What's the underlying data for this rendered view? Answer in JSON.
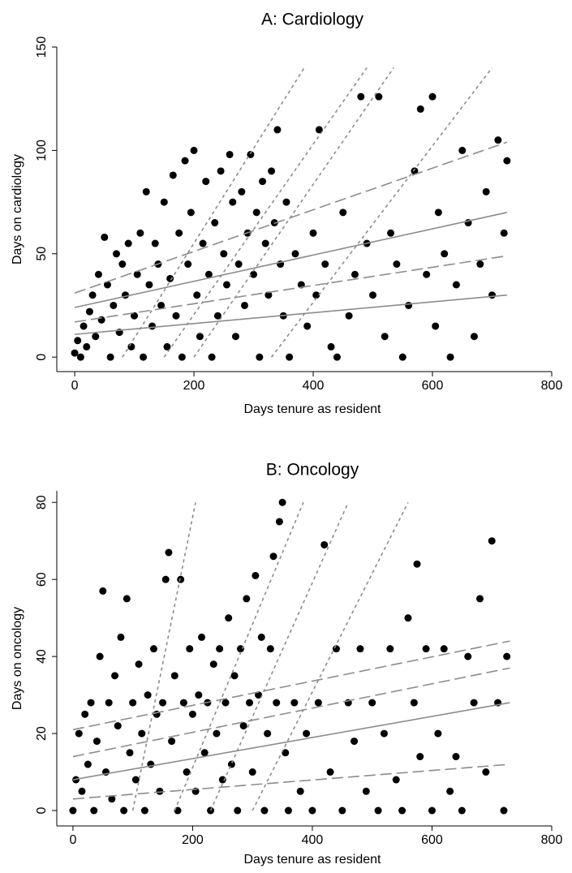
{
  "chart_data": [
    {
      "type": "scatter",
      "title": "A: Cardiology",
      "x_label": "Days tenure as resident",
      "y_label": "Days on cardiology",
      "xlim": [
        -30,
        800
      ],
      "ylim": [
        -7,
        150
      ],
      "xticks": [
        0,
        200,
        400,
        600,
        800
      ],
      "yticks": [
        0,
        50,
        100,
        150
      ],
      "color": "#000000",
      "x": [
        0,
        5,
        10,
        15,
        20,
        25,
        30,
        35,
        40,
        45,
        50,
        55,
        60,
        65,
        70,
        75,
        80,
        85,
        90,
        95,
        100,
        105,
        110,
        115,
        120,
        125,
        130,
        135,
        140,
        145,
        150,
        155,
        160,
        165,
        170,
        175,
        180,
        185,
        190,
        195,
        200,
        205,
        210,
        215,
        220,
        225,
        230,
        235,
        240,
        245,
        250,
        255,
        260,
        265,
        270,
        275,
        280,
        285,
        290,
        295,
        300,
        305,
        310,
        315,
        320,
        325,
        330,
        335,
        340,
        345,
        350,
        355,
        360,
        370,
        380,
        390,
        400,
        405,
        410,
        420,
        430,
        440,
        450,
        460,
        470,
        480,
        490,
        500,
        510,
        520,
        530,
        540,
        550,
        560,
        570,
        580,
        590,
        600,
        605,
        610,
        620,
        630,
        640,
        650,
        660,
        670,
        680,
        690,
        700,
        710,
        720,
        725
      ],
      "y": [
        2,
        8,
        0,
        15,
        5,
        22,
        30,
        10,
        40,
        18,
        58,
        35,
        0,
        25,
        50,
        12,
        45,
        30,
        55,
        5,
        20,
        40,
        60,
        0,
        80,
        35,
        15,
        55,
        45,
        25,
        75,
        5,
        38,
        88,
        20,
        60,
        0,
        95,
        45,
        70,
        100,
        30,
        10,
        55,
        85,
        40,
        0,
        65,
        20,
        90,
        50,
        35,
        98,
        75,
        10,
        45,
        80,
        25,
        60,
        98,
        40,
        70,
        0,
        85,
        55,
        30,
        90,
        65,
        110,
        45,
        20,
        75,
        0,
        50,
        35,
        15,
        60,
        30,
        110,
        45,
        5,
        0,
        70,
        20,
        40,
        126,
        55,
        30,
        126,
        10,
        60,
        45,
        0,
        25,
        90,
        120,
        40,
        126,
        15,
        70,
        50,
        0,
        35,
        100,
        65,
        10,
        45,
        80,
        30,
        105,
        60,
        95
      ],
      "lines": [
        {
          "x": [
            0,
            725
          ],
          "y": [
            31,
            104
          ],
          "style": "longdash",
          "color": "#8c8c8c"
        },
        {
          "x": [
            0,
            725
          ],
          "y": [
            24,
            70
          ],
          "style": "solid",
          "color": "#8c8c8c"
        },
        {
          "x": [
            0,
            725
          ],
          "y": [
            17,
            49
          ],
          "style": "longdash",
          "color": "#8c8c8c"
        },
        {
          "x": [
            0,
            725
          ],
          "y": [
            11,
            30
          ],
          "style": "solid",
          "color": "#8c8c8c"
        },
        {
          "x": [
            80,
            385
          ],
          "y": [
            0,
            140
          ],
          "style": "shortdash",
          "color": "#8c8c8c"
        },
        {
          "x": [
            150,
            490
          ],
          "y": [
            0,
            140
          ],
          "style": "shortdash",
          "color": "#8c8c8c"
        },
        {
          "x": [
            200,
            535
          ],
          "y": [
            0,
            140
          ],
          "style": "shortdash",
          "color": "#8c8c8c"
        },
        {
          "x": [
            330,
            700
          ],
          "y": [
            0,
            140
          ],
          "style": "shortdash",
          "color": "#8c8c8c"
        }
      ]
    },
    {
      "type": "scatter",
      "title": "B: Oncology",
      "x_label": "Days tenure as resident",
      "y_label": "Days on oncology",
      "xlim": [
        -27,
        800
      ],
      "ylim": [
        -4,
        83
      ],
      "xticks": [
        0,
        200,
        400,
        600,
        800
      ],
      "yticks": [
        0,
        20,
        40,
        60,
        80
      ],
      "color": "#000000",
      "x": [
        0,
        5,
        10,
        15,
        20,
        25,
        30,
        35,
        40,
        45,
        50,
        55,
        60,
        65,
        70,
        75,
        80,
        85,
        90,
        95,
        100,
        105,
        110,
        115,
        120,
        125,
        130,
        135,
        140,
        145,
        150,
        155,
        160,
        165,
        170,
        175,
        180,
        185,
        190,
        195,
        200,
        205,
        210,
        215,
        220,
        225,
        230,
        235,
        240,
        245,
        250,
        255,
        260,
        265,
        270,
        275,
        280,
        285,
        290,
        295,
        300,
        305,
        310,
        315,
        320,
        325,
        330,
        335,
        340,
        345,
        350,
        355,
        360,
        370,
        380,
        390,
        400,
        410,
        420,
        430,
        440,
        450,
        460,
        470,
        480,
        490,
        500,
        510,
        520,
        530,
        540,
        550,
        560,
        570,
        575,
        580,
        590,
        600,
        610,
        620,
        630,
        640,
        650,
        660,
        670,
        680,
        690,
        700,
        710,
        720,
        725
      ],
      "y": [
        0,
        8,
        20,
        5,
        25,
        12,
        28,
        0,
        18,
        40,
        57,
        10,
        28,
        3,
        35,
        22,
        45,
        0,
        55,
        15,
        28,
        8,
        38,
        20,
        0,
        30,
        12,
        42,
        25,
        5,
        28,
        60,
        67,
        18,
        35,
        0,
        60,
        28,
        10,
        42,
        25,
        5,
        30,
        45,
        15,
        28,
        0,
        38,
        20,
        42,
        8,
        28,
        50,
        12,
        35,
        0,
        42,
        22,
        55,
        28,
        10,
        61,
        30,
        45,
        0,
        20,
        42,
        66,
        28,
        75,
        80,
        15,
        0,
        28,
        5,
        20,
        0,
        28,
        69,
        10,
        42,
        0,
        28,
        18,
        42,
        5,
        28,
        0,
        20,
        42,
        8,
        0,
        50,
        28,
        64,
        14,
        42,
        0,
        20,
        42,
        5,
        14,
        0,
        40,
        28,
        55,
        10,
        70,
        28,
        0,
        40
      ],
      "lines": [
        {
          "x": [
            0,
            730
          ],
          "y": [
            21,
            44
          ],
          "style": "longdash",
          "color": "#8c8c8c"
        },
        {
          "x": [
            0,
            730
          ],
          "y": [
            14,
            37
          ],
          "style": "longdash",
          "color": "#8c8c8c"
        },
        {
          "x": [
            0,
            730
          ],
          "y": [
            8,
            28
          ],
          "style": "solid",
          "color": "#8c8c8c"
        },
        {
          "x": [
            0,
            730
          ],
          "y": [
            3,
            12
          ],
          "style": "longdash",
          "color": "#8c8c8c"
        },
        {
          "x": [
            100,
            205
          ],
          "y": [
            0,
            80
          ],
          "style": "shortdash",
          "color": "#8c8c8c"
        },
        {
          "x": [
            170,
            385
          ],
          "y": [
            0,
            80
          ],
          "style": "shortdash",
          "color": "#8c8c8c"
        },
        {
          "x": [
            230,
            460
          ],
          "y": [
            0,
            80
          ],
          "style": "shortdash",
          "color": "#8c8c8c"
        },
        {
          "x": [
            300,
            560
          ],
          "y": [
            0,
            80
          ],
          "style": "shortdash",
          "color": "#8c8c8c"
        }
      ]
    }
  ]
}
